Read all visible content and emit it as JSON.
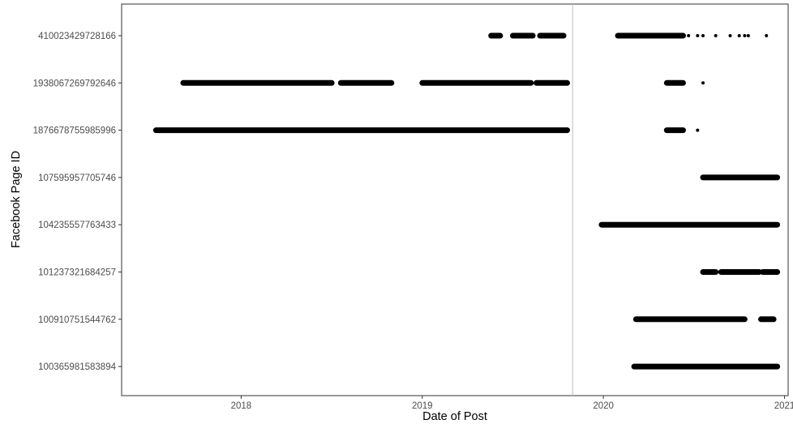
{
  "chart_data": {
    "type": "scatter",
    "title": "",
    "xlabel": "Date of Post",
    "ylabel": "Facebook Page ID",
    "xlim": [
      2017.34,
      2021.02
    ],
    "x_ticks": [
      "2018",
      "2019",
      "2020",
      "2021"
    ],
    "grid": false,
    "legend": "none",
    "reference_line": {
      "x": 2019.83,
      "color": "#bdbdbd"
    },
    "categories": [
      "410023429728166",
      "1938067269792646",
      "1876678755985996",
      "107595957705746",
      "104235557763433",
      "101237321684257",
      "100910751544762",
      "100365981583894"
    ],
    "series": [
      {
        "id": "410023429728166",
        "segments": [
          [
            2019.38,
            2019.43
          ],
          [
            2019.5,
            2019.61
          ],
          [
            2019.65,
            2019.78
          ],
          [
            2020.08,
            2020.44
          ]
        ],
        "points": [
          2020.47,
          2020.52,
          2020.55,
          2020.62,
          2020.7,
          2020.75,
          2020.78,
          2020.8,
          2020.9
        ]
      },
      {
        "id": "1938067269792646",
        "segments": [
          [
            2017.68,
            2018.5
          ],
          [
            2018.55,
            2018.83
          ],
          [
            2019.0,
            2019.6
          ],
          [
            2019.63,
            2019.8
          ],
          [
            2020.35,
            2020.44
          ]
        ],
        "points": [
          2020.55
        ]
      },
      {
        "id": "1876678755985996",
        "segments": [
          [
            2017.53,
            2019.8
          ],
          [
            2020.35,
            2020.44
          ]
        ],
        "points": [
          2020.52
        ]
      },
      {
        "id": "107595957705746",
        "segments": [
          [
            2020.55,
            2020.96
          ]
        ],
        "points": []
      },
      {
        "id": "104235557763433",
        "segments": [
          [
            2019.99,
            2020.96
          ]
        ],
        "points": []
      },
      {
        "id": "101237321684257",
        "segments": [
          [
            2020.55,
            2020.62
          ],
          [
            2020.65,
            2020.86
          ],
          [
            2020.88,
            2020.96
          ]
        ],
        "points": []
      },
      {
        "id": "100910751544762",
        "segments": [
          [
            2020.18,
            2020.78
          ],
          [
            2020.87,
            2020.94
          ]
        ],
        "points": []
      },
      {
        "id": "100365981583894",
        "segments": [
          [
            2020.17,
            2020.96
          ]
        ],
        "points": []
      }
    ]
  }
}
